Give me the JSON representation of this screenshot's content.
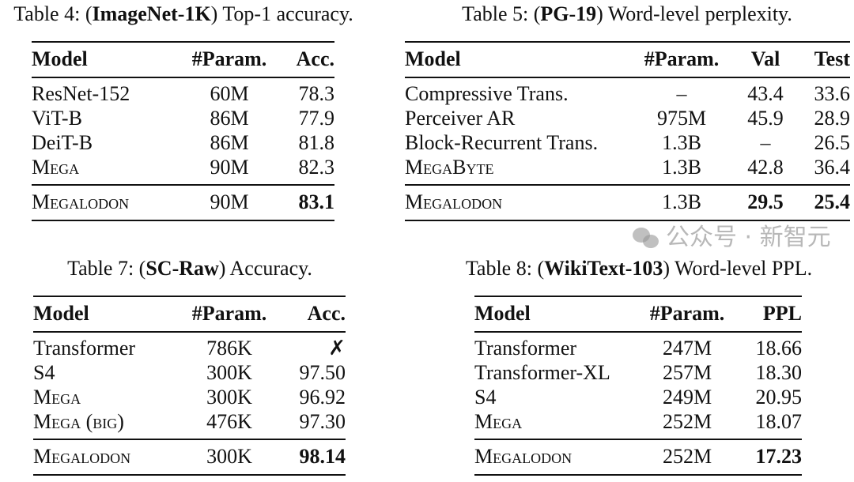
{
  "tables": [
    {
      "caption": {
        "prefix": "Table 4: (",
        "bold": "ImageNet-1K",
        "suffix": ") Top-1 accuracy."
      },
      "headers": [
        "Model",
        "#Param.",
        "Acc."
      ],
      "rows": [
        [
          "ResNet-152",
          "60M",
          "78.3"
        ],
        [
          "ViT-B",
          "86M",
          "77.9"
        ],
        [
          "DeiT-B",
          "86M",
          "81.8"
        ],
        [
          "Mega",
          "90M",
          "82.3"
        ]
      ],
      "final_row": [
        "Megalodon",
        "90M",
        "83.1"
      ]
    },
    {
      "caption": {
        "prefix": "Table 5: (",
        "bold": "PG-19",
        "suffix": ") Word-level perplexity."
      },
      "headers": [
        "Model",
        "#Param.",
        "Val",
        "Test"
      ],
      "rows": [
        [
          "Compressive Trans.",
          "–",
          "43.4",
          "33.6"
        ],
        [
          "Perceiver AR",
          "975M",
          "45.9",
          "28.9"
        ],
        [
          "Block-Recurrent Trans.",
          "1.3B",
          "–",
          "26.5"
        ],
        [
          "MegaByte",
          "1.3B",
          "42.8",
          "36.4"
        ]
      ],
      "final_row": [
        "Megalodon",
        "1.3B",
        "29.5",
        "25.4"
      ]
    },
    {
      "caption": {
        "prefix": "Table 7: (",
        "bold": "SC-Raw",
        "suffix": ") Accuracy."
      },
      "headers": [
        "Model",
        "#Param.",
        "Acc."
      ],
      "rows": [
        [
          "Transformer",
          "786K",
          "✗"
        ],
        [
          "S4",
          "300K",
          "97.50"
        ],
        [
          "Mega",
          "300K",
          "96.92"
        ],
        [
          "Mega (big)",
          "476K",
          "97.30"
        ]
      ],
      "final_row": [
        "Megalodon",
        "300K",
        "98.14"
      ]
    },
    {
      "caption": {
        "prefix": "Table 8: (",
        "bold": "WikiText-103",
        "suffix": ") Word-level PPL."
      },
      "headers": [
        "Model",
        "#Param.",
        "PPL"
      ],
      "rows": [
        [
          "Transformer",
          "247M",
          "18.66"
        ],
        [
          "Transformer-XL",
          "257M",
          "18.30"
        ],
        [
          "S4",
          "249M",
          "20.95"
        ],
        [
          "Mega",
          "252M",
          "18.07"
        ]
      ],
      "final_row": [
        "Megalodon",
        "252M",
        "17.23"
      ]
    }
  ],
  "watermark": "公众号 · 新智元"
}
